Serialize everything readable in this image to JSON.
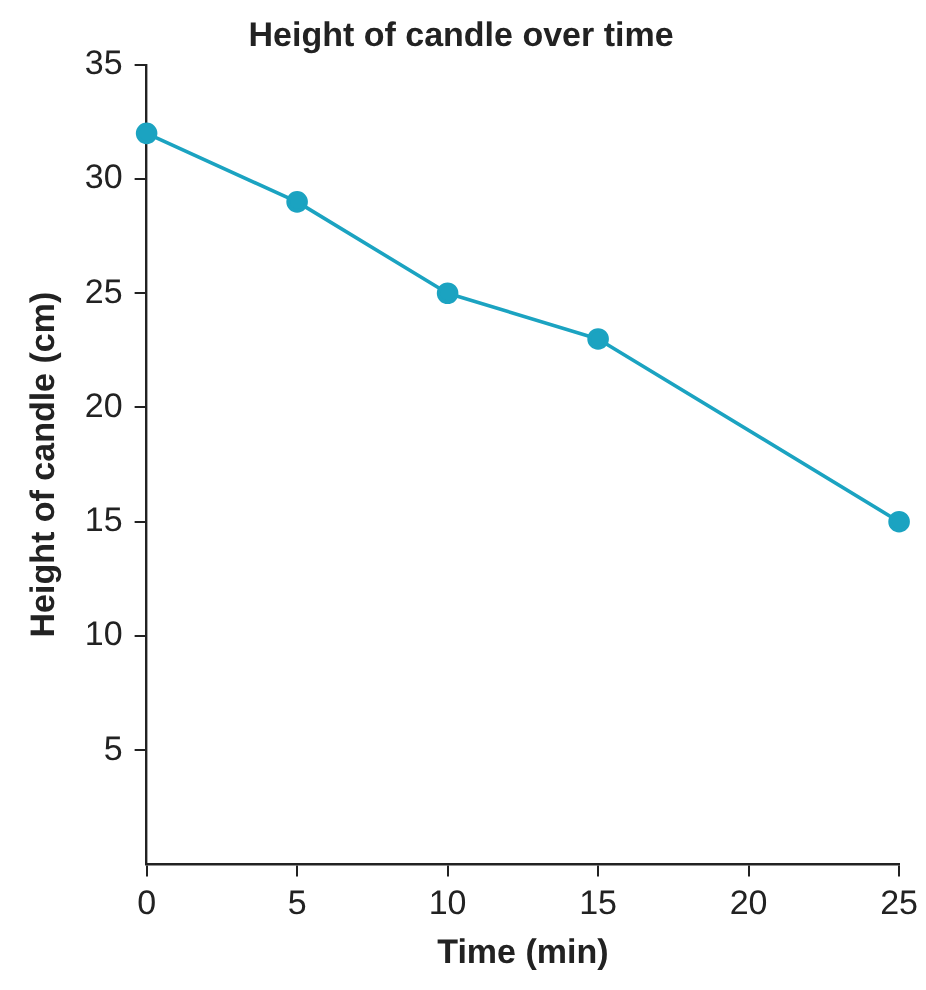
{
  "chart_data": {
    "type": "line",
    "title": "Height of candle over time",
    "xlabel": "Time (min)",
    "ylabel": "Height of candle (cm)",
    "x": [
      0,
      5,
      10,
      15,
      25
    ],
    "series": [
      {
        "color": "#1ba3c1",
        "values": [
          32,
          29,
          25,
          23,
          15
        ]
      }
    ],
    "xlim": [
      0,
      25
    ],
    "xticks": [
      0,
      5,
      10,
      15,
      20,
      25
    ],
    "ylim": [
      0,
      35
    ],
    "yticks": [
      5,
      10,
      15,
      20,
      25,
      30,
      35
    ],
    "grid": false,
    "legend": false,
    "marker": "circle",
    "line_style": "solid"
  }
}
